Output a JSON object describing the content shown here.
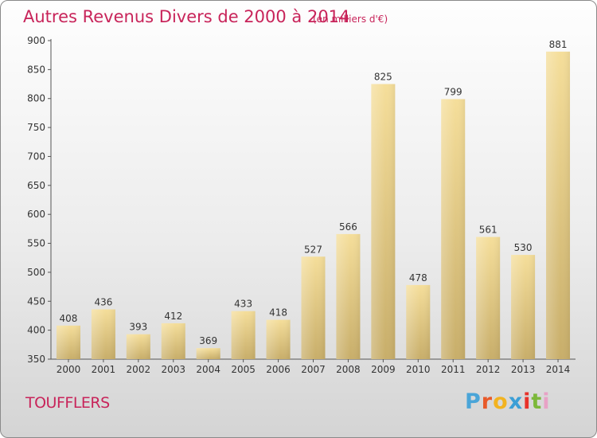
{
  "title": "Autres Revenus Divers de 2000 à 2014",
  "subtitle": "(en milliers d'€)",
  "commune": "TOUFFLERS",
  "logo": {
    "text": "Proxiti",
    "colors": [
      "#4aa5d8",
      "#e85a2a",
      "#f2b320",
      "#3c9fd6",
      "#e8322a",
      "#7cb83a",
      "#e8a2c6"
    ]
  },
  "colors": {
    "title": "#c8245a",
    "bar_light": "#f5de9a",
    "bar_dark": "#c8ae6a",
    "axis": "#555555"
  },
  "chart_data": {
    "type": "bar",
    "title": "Autres Revenus Divers de 2000 à 2014",
    "categories": [
      "2000",
      "2001",
      "2002",
      "2003",
      "2004",
      "2005",
      "2006",
      "2007",
      "2008",
      "2009",
      "2010",
      "2011",
      "2012",
      "2013",
      "2014"
    ],
    "values": [
      408,
      436,
      393,
      412,
      369,
      433,
      418,
      527,
      566,
      825,
      478,
      799,
      561,
      530,
      881
    ],
    "ylim": [
      350,
      900
    ],
    "yticks": [
      350,
      400,
      450,
      500,
      550,
      600,
      650,
      700,
      750,
      800,
      850,
      900
    ],
    "grid": false,
    "data_labels": true
  }
}
